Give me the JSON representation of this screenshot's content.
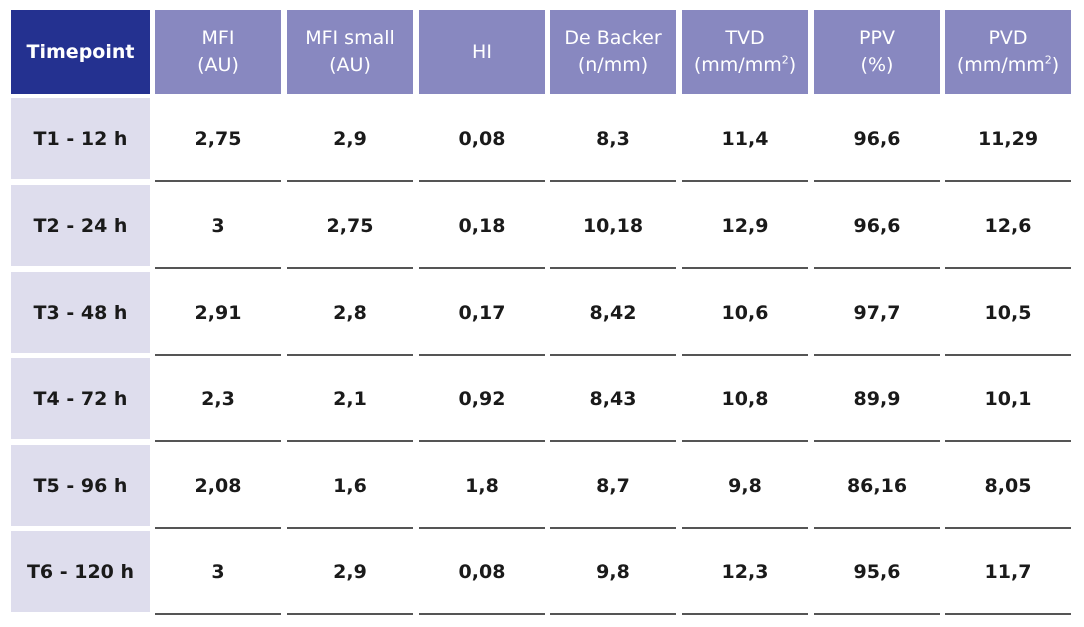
{
  "table": {
    "corner_label": "Timepoint",
    "columns": [
      {
        "line1": "MFI",
        "line2": "(AU)",
        "sup": ""
      },
      {
        "line1": "MFI small",
        "line2": "(AU)",
        "sup": ""
      },
      {
        "line1": "HI",
        "line2": "",
        "sup": ""
      },
      {
        "line1": "De Backer",
        "line2": "(n/mm)",
        "sup": ""
      },
      {
        "line1": "TVD",
        "line2": "(mm/mm",
        "sup": "2",
        "tail": ")"
      },
      {
        "line1": "PPV",
        "line2": "(%)",
        "sup": ""
      },
      {
        "line1": "PVD",
        "line2": "(mm/mm",
        "sup": "2",
        "tail": ")"
      }
    ],
    "rows": [
      {
        "label": "T1 - 12 h",
        "values": [
          "2,75",
          "2,9",
          "0,08",
          "8,3",
          "11,4",
          "96,6",
          "11,29"
        ]
      },
      {
        "label": "T2 - 24 h",
        "values": [
          "3",
          "2,75",
          "0,18",
          "10,18",
          "12,9",
          "96,6",
          "12,6"
        ]
      },
      {
        "label": "T3 - 48 h",
        "values": [
          "2,91",
          "2,8",
          "0,17",
          "8,42",
          "10,6",
          "97,7",
          "10,5"
        ]
      },
      {
        "label": "T4 - 72 h",
        "values": [
          "2,3",
          "2,1",
          "0,92",
          "8,43",
          "10,8",
          "89,9",
          "10,1"
        ]
      },
      {
        "label": "T5 - 96 h",
        "values": [
          "2,08",
          "1,6",
          "1,8",
          "8,7",
          "9,8",
          "86,16",
          "8,05"
        ]
      },
      {
        "label": "T6 - 120 h",
        "values": [
          "3",
          "2,9",
          "0,08",
          "9,8",
          "12,3",
          "95,6",
          "11,7"
        ]
      }
    ],
    "colors": {
      "corner_bg": "#243190",
      "header_bg": "#8888c0",
      "label_bg": "#dedded",
      "rule": "#555555"
    }
  }
}
